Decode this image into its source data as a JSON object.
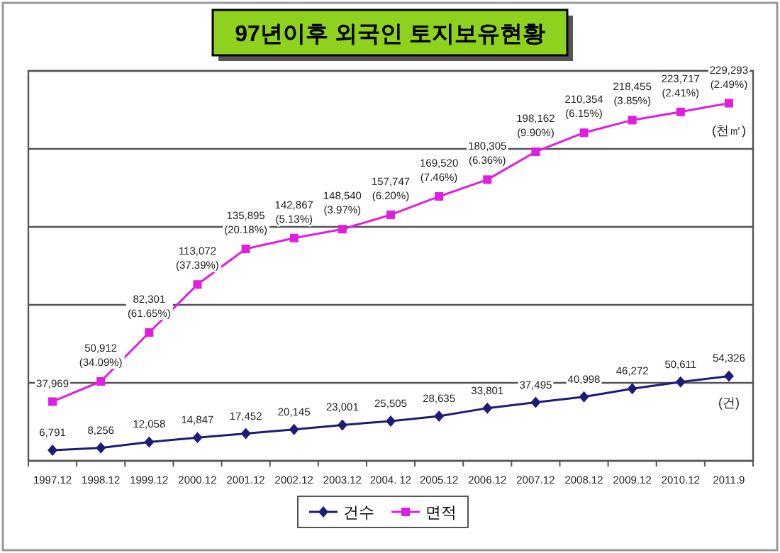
{
  "chart_data": {
    "type": "line",
    "title": "97년이후 외국인 토지보유현황",
    "categories": [
      "1997.12",
      "1998.12",
      "1999.12",
      "2000.12",
      "2001.12",
      "2002.12",
      "2003.12",
      "2004. 12",
      "2005.12",
      "2006.12",
      "2007.12",
      "2008.12",
      "2009.12",
      "2010.12",
      "2011.9"
    ],
    "series": [
      {
        "name": "건수",
        "color": "#1c1c78",
        "marker": "diamond",
        "values": [
          6791,
          8256,
          12058,
          14847,
          17452,
          20145,
          23001,
          25505,
          28635,
          33801,
          37495,
          40998,
          46272,
          50611,
          54326
        ],
        "value_labels": [
          "6,791",
          "8,256",
          "12,058",
          "14,847",
          "17,452",
          "20,145",
          "23,001",
          "25,505",
          "28,635",
          "33,801",
          "37,495",
          "40,998",
          "46,272",
          "50,611",
          "54,326"
        ]
      },
      {
        "name": "면적",
        "color": "#e01ee0",
        "marker": "square",
        "values": [
          37969,
          50912,
          82301,
          113072,
          135895,
          142867,
          148540,
          157747,
          169520,
          180305,
          198162,
          210354,
          218455,
          223717,
          229293
        ],
        "value_labels": [
          "37,969",
          "50,912 (34.09%)",
          "82,301 (61.65%)",
          "113,072 (37.39%)",
          "135,895 (20.18%)",
          "142,867 (5.13%)",
          "148,540 (3.97%)",
          "157,747 (6.20%)",
          "169,520 (7.46%)",
          "180,305 (6.36%)",
          "198,162 (9.90%)",
          "210,354 (6.15%)",
          "218,455 (3.85%)",
          "223,717 (2.41%)",
          "229,293 (2.49%)"
        ]
      }
    ],
    "annotations": [
      "(건)",
      "(천㎡)"
    ],
    "ylim": [
      0,
      250000
    ],
    "yticks": [
      {
        "value": 0,
        "label": null
      },
      {
        "value": 50000,
        "label": null
      },
      {
        "value": 100000,
        "label": null
      },
      {
        "value": 150000,
        "label": null
      },
      {
        "value": 200000,
        "label": null
      },
      {
        "value": 250000,
        "label": null
      }
    ],
    "tick_labels": "x",
    "grid": "y",
    "legend": "bottom"
  }
}
